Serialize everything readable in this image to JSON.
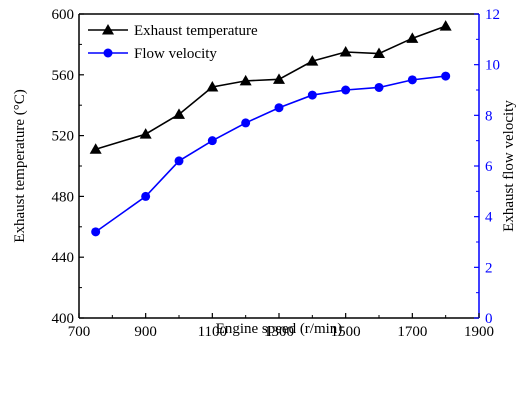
{
  "chart_data": {
    "type": "line",
    "title": "",
    "xlabel": "Engine speed (r/min)",
    "ylabel_left": "Exhaust temperature (°C)",
    "ylabel_right": "Exhaust flow velocity",
    "xlim": [
      700,
      1900
    ],
    "xticks": [
      "700",
      "900",
      "1100",
      "1300",
      "1500",
      "1700",
      "1900"
    ],
    "ylim_left": [
      400,
      600
    ],
    "yticks_left": [
      "400",
      "440",
      "480",
      "520",
      "560",
      "600"
    ],
    "ylim_right": [
      0,
      12
    ],
    "yticks_right": [
      "0",
      "2",
      "4",
      "6",
      "8",
      "10",
      "12"
    ],
    "legend_position": "top-left",
    "grid": false,
    "colors": {
      "temperature": "#000000",
      "velocity": "#0000ff"
    },
    "series": [
      {
        "name": "Exhaust temperature",
        "axis": "left",
        "marker": "triangle",
        "x": [
          750,
          900,
          1000,
          1100,
          1200,
          1300,
          1400,
          1500,
          1600,
          1700,
          1800
        ],
        "y": [
          511,
          521,
          534,
          552,
          556,
          557,
          569,
          575,
          574,
          584,
          592
        ]
      },
      {
        "name": "Flow velocity",
        "axis": "right",
        "marker": "circle",
        "x": [
          750,
          900,
          1000,
          1100,
          1200,
          1300,
          1400,
          1500,
          1600,
          1700,
          1800
        ],
        "y": [
          3.4,
          4.8,
          6.2,
          7.0,
          7.7,
          8.3,
          8.8,
          9.0,
          9.1,
          9.4,
          9.55
        ]
      }
    ]
  }
}
